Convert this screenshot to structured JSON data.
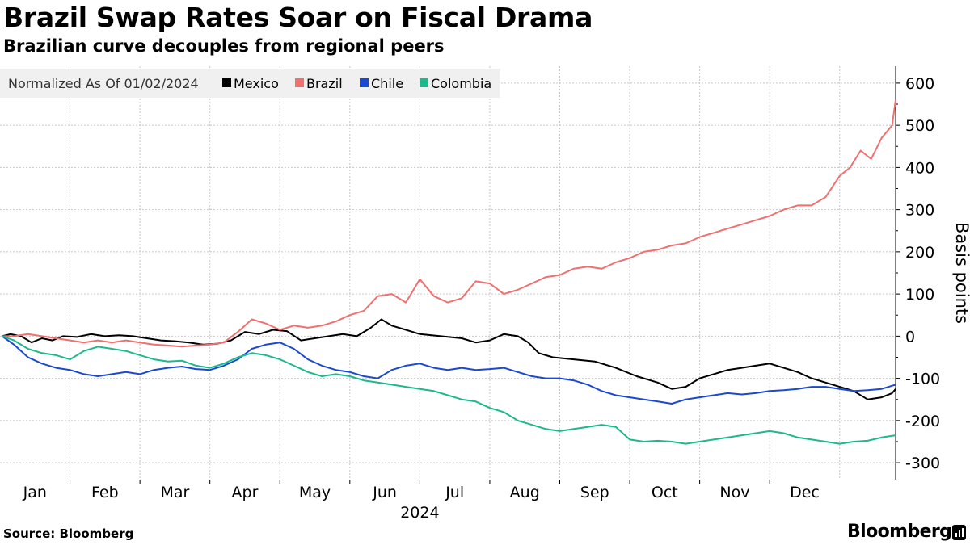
{
  "chart_data": {
    "type": "line",
    "title": "Brazil Swap Rates Soar on Fiscal Drama",
    "subtitle": "Brazilian curve decouples from regional peers",
    "legend_title": "Normalized As Of 01/02/2024",
    "ylabel": "Basis points",
    "xlabel": "2024",
    "ylim": [
      -340,
      640
    ],
    "yticks": [
      600,
      500,
      400,
      300,
      200,
      100,
      0,
      -100,
      -200,
      -300
    ],
    "xlim": [
      0,
      12.8
    ],
    "months": [
      "Jan",
      "Feb",
      "Mar",
      "Apr",
      "May",
      "Jun",
      "Jul",
      "Aug",
      "Sep",
      "Oct",
      "Nov",
      "Dec"
    ],
    "x_note": "x values are months elapsed since Jan 1, 2024",
    "series": [
      {
        "name": "Mexico",
        "color": "#000000",
        "points": [
          [
            0.03,
            0
          ],
          [
            0.15,
            5
          ],
          [
            0.3,
            0
          ],
          [
            0.45,
            -15
          ],
          [
            0.6,
            -5
          ],
          [
            0.75,
            -10
          ],
          [
            0.9,
            0
          ],
          [
            1.1,
            -2
          ],
          [
            1.3,
            5
          ],
          [
            1.5,
            0
          ],
          [
            1.7,
            2
          ],
          [
            1.9,
            0
          ],
          [
            2.1,
            -5
          ],
          [
            2.3,
            -10
          ],
          [
            2.5,
            -12
          ],
          [
            2.7,
            -15
          ],
          [
            2.9,
            -20
          ],
          [
            3.1,
            -18
          ],
          [
            3.3,
            -10
          ],
          [
            3.5,
            10
          ],
          [
            3.7,
            5
          ],
          [
            3.9,
            15
          ],
          [
            4.1,
            12
          ],
          [
            4.3,
            -10
          ],
          [
            4.5,
            -5
          ],
          [
            4.7,
            0
          ],
          [
            4.9,
            5
          ],
          [
            5.1,
            0
          ],
          [
            5.3,
            20
          ],
          [
            5.45,
            40
          ],
          [
            5.6,
            25
          ],
          [
            5.8,
            15
          ],
          [
            6.0,
            5
          ],
          [
            6.3,
            0
          ],
          [
            6.6,
            -5
          ],
          [
            6.8,
            -15
          ],
          [
            7.0,
            -10
          ],
          [
            7.2,
            5
          ],
          [
            7.4,
            0
          ],
          [
            7.55,
            -15
          ],
          [
            7.7,
            -40
          ],
          [
            7.9,
            -50
          ],
          [
            8.2,
            -55
          ],
          [
            8.5,
            -60
          ],
          [
            8.8,
            -75
          ],
          [
            9.1,
            -95
          ],
          [
            9.4,
            -110
          ],
          [
            9.6,
            -125
          ],
          [
            9.8,
            -120
          ],
          [
            10.0,
            -100
          ],
          [
            10.2,
            -90
          ],
          [
            10.4,
            -80
          ],
          [
            10.6,
            -75
          ],
          [
            10.8,
            -70
          ],
          [
            11.0,
            -65
          ],
          [
            11.2,
            -75
          ],
          [
            11.4,
            -85
          ],
          [
            11.6,
            -100
          ],
          [
            11.8,
            -110
          ],
          [
            12.0,
            -120
          ],
          [
            12.2,
            -130
          ],
          [
            12.4,
            -150
          ],
          [
            12.6,
            -145
          ],
          [
            12.75,
            -135
          ],
          [
            12.8,
            -125
          ]
        ]
      },
      {
        "name": "Brazil",
        "color": "#f07070",
        "points": [
          [
            0.03,
            0
          ],
          [
            0.2,
            0
          ],
          [
            0.4,
            5
          ],
          [
            0.6,
            0
          ],
          [
            0.8,
            -5
          ],
          [
            1.0,
            -10
          ],
          [
            1.2,
            -15
          ],
          [
            1.4,
            -10
          ],
          [
            1.6,
            -15
          ],
          [
            1.8,
            -10
          ],
          [
            2.0,
            -15
          ],
          [
            2.2,
            -20
          ],
          [
            2.4,
            -22
          ],
          [
            2.6,
            -25
          ],
          [
            2.8,
            -22
          ],
          [
            3.0,
            -20
          ],
          [
            3.2,
            -15
          ],
          [
            3.4,
            10
          ],
          [
            3.6,
            40
          ],
          [
            3.8,
            30
          ],
          [
            4.0,
            15
          ],
          [
            4.2,
            25
          ],
          [
            4.4,
            20
          ],
          [
            4.6,
            25
          ],
          [
            4.8,
            35
          ],
          [
            5.0,
            50
          ],
          [
            5.2,
            60
          ],
          [
            5.4,
            95
          ],
          [
            5.6,
            100
          ],
          [
            5.8,
            80
          ],
          [
            6.0,
            135
          ],
          [
            6.2,
            95
          ],
          [
            6.4,
            80
          ],
          [
            6.6,
            90
          ],
          [
            6.8,
            130
          ],
          [
            7.0,
            125
          ],
          [
            7.2,
            100
          ],
          [
            7.4,
            110
          ],
          [
            7.6,
            125
          ],
          [
            7.8,
            140
          ],
          [
            8.0,
            145
          ],
          [
            8.2,
            160
          ],
          [
            8.4,
            165
          ],
          [
            8.6,
            160
          ],
          [
            8.8,
            175
          ],
          [
            9.0,
            185
          ],
          [
            9.2,
            200
          ],
          [
            9.4,
            205
          ],
          [
            9.6,
            215
          ],
          [
            9.8,
            220
          ],
          [
            10.0,
            235
          ],
          [
            10.2,
            245
          ],
          [
            10.4,
            255
          ],
          [
            10.6,
            265
          ],
          [
            10.8,
            275
          ],
          [
            11.0,
            285
          ],
          [
            11.2,
            300
          ],
          [
            11.4,
            310
          ],
          [
            11.6,
            310
          ],
          [
            11.8,
            330
          ],
          [
            12.0,
            380
          ],
          [
            12.15,
            400
          ],
          [
            12.3,
            440
          ],
          [
            12.45,
            420
          ],
          [
            12.6,
            470
          ],
          [
            12.75,
            500
          ],
          [
            12.8,
            560
          ]
        ]
      },
      {
        "name": "Chile",
        "color": "#1a49d1",
        "points": [
          [
            0.03,
            0
          ],
          [
            0.2,
            -20
          ],
          [
            0.4,
            -50
          ],
          [
            0.6,
            -65
          ],
          [
            0.8,
            -75
          ],
          [
            1.0,
            -80
          ],
          [
            1.2,
            -90
          ],
          [
            1.4,
            -95
          ],
          [
            1.6,
            -90
          ],
          [
            1.8,
            -85
          ],
          [
            2.0,
            -90
          ],
          [
            2.2,
            -80
          ],
          [
            2.4,
            -75
          ],
          [
            2.6,
            -72
          ],
          [
            2.8,
            -78
          ],
          [
            3.0,
            -80
          ],
          [
            3.2,
            -70
          ],
          [
            3.4,
            -55
          ],
          [
            3.6,
            -30
          ],
          [
            3.8,
            -20
          ],
          [
            4.0,
            -15
          ],
          [
            4.2,
            -30
          ],
          [
            4.4,
            -55
          ],
          [
            4.6,
            -70
          ],
          [
            4.8,
            -80
          ],
          [
            5.0,
            -85
          ],
          [
            5.2,
            -95
          ],
          [
            5.4,
            -100
          ],
          [
            5.6,
            -80
          ],
          [
            5.8,
            -70
          ],
          [
            6.0,
            -65
          ],
          [
            6.2,
            -75
          ],
          [
            6.4,
            -80
          ],
          [
            6.6,
            -75
          ],
          [
            6.8,
            -80
          ],
          [
            7.0,
            -78
          ],
          [
            7.2,
            -75
          ],
          [
            7.4,
            -85
          ],
          [
            7.6,
            -95
          ],
          [
            7.8,
            -100
          ],
          [
            8.0,
            -100
          ],
          [
            8.2,
            -105
          ],
          [
            8.4,
            -115
          ],
          [
            8.6,
            -130
          ],
          [
            8.8,
            -140
          ],
          [
            9.0,
            -145
          ],
          [
            9.2,
            -150
          ],
          [
            9.4,
            -155
          ],
          [
            9.6,
            -160
          ],
          [
            9.8,
            -150
          ],
          [
            10.0,
            -145
          ],
          [
            10.2,
            -140
          ],
          [
            10.4,
            -135
          ],
          [
            10.6,
            -138
          ],
          [
            10.8,
            -135
          ],
          [
            11.0,
            -130
          ],
          [
            11.2,
            -128
          ],
          [
            11.4,
            -125
          ],
          [
            11.6,
            -120
          ],
          [
            11.8,
            -120
          ],
          [
            12.0,
            -125
          ],
          [
            12.2,
            -130
          ],
          [
            12.4,
            -128
          ],
          [
            12.6,
            -125
          ],
          [
            12.8,
            -115
          ]
        ]
      },
      {
        "name": "Colombia",
        "color": "#1bb98b",
        "points": [
          [
            0.03,
            0
          ],
          [
            0.2,
            -10
          ],
          [
            0.4,
            -30
          ],
          [
            0.6,
            -40
          ],
          [
            0.8,
            -45
          ],
          [
            1.0,
            -55
          ],
          [
            1.2,
            -35
          ],
          [
            1.4,
            -25
          ],
          [
            1.6,
            -30
          ],
          [
            1.8,
            -35
          ],
          [
            2.0,
            -45
          ],
          [
            2.2,
            -55
          ],
          [
            2.4,
            -60
          ],
          [
            2.6,
            -58
          ],
          [
            2.8,
            -70
          ],
          [
            3.0,
            -75
          ],
          [
            3.2,
            -65
          ],
          [
            3.4,
            -50
          ],
          [
            3.6,
            -40
          ],
          [
            3.8,
            -45
          ],
          [
            4.0,
            -55
          ],
          [
            4.2,
            -70
          ],
          [
            4.4,
            -85
          ],
          [
            4.6,
            -95
          ],
          [
            4.8,
            -90
          ],
          [
            5.0,
            -95
          ],
          [
            5.2,
            -105
          ],
          [
            5.4,
            -110
          ],
          [
            5.6,
            -115
          ],
          [
            5.8,
            -120
          ],
          [
            6.0,
            -125
          ],
          [
            6.2,
            -130
          ],
          [
            6.4,
            -140
          ],
          [
            6.6,
            -150
          ],
          [
            6.8,
            -155
          ],
          [
            7.0,
            -170
          ],
          [
            7.2,
            -180
          ],
          [
            7.4,
            -200
          ],
          [
            7.6,
            -210
          ],
          [
            7.8,
            -220
          ],
          [
            8.0,
            -225
          ],
          [
            8.2,
            -220
          ],
          [
            8.4,
            -215
          ],
          [
            8.6,
            -210
          ],
          [
            8.8,
            -215
          ],
          [
            9.0,
            -245
          ],
          [
            9.2,
            -250
          ],
          [
            9.4,
            -248
          ],
          [
            9.6,
            -250
          ],
          [
            9.8,
            -255
          ],
          [
            10.0,
            -250
          ],
          [
            10.2,
            -245
          ],
          [
            10.4,
            -240
          ],
          [
            10.6,
            -235
          ],
          [
            10.8,
            -230
          ],
          [
            11.0,
            -225
          ],
          [
            11.2,
            -230
          ],
          [
            11.4,
            -240
          ],
          [
            11.6,
            -245
          ],
          [
            11.8,
            -250
          ],
          [
            12.0,
            -255
          ],
          [
            12.2,
            -250
          ],
          [
            12.4,
            -248
          ],
          [
            12.6,
            -240
          ],
          [
            12.8,
            -235
          ]
        ]
      }
    ]
  },
  "source": "Source: Bloomberg",
  "brand": "Bloomberg"
}
